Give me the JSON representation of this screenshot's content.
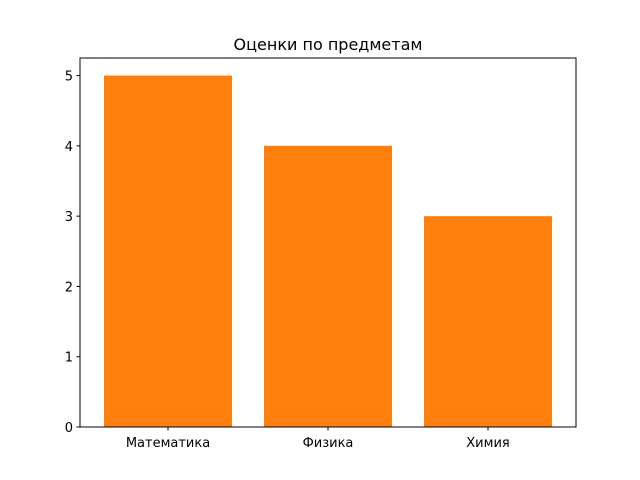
{
  "chart_data": {
    "type": "bar",
    "title": "Оценки по предметам",
    "categories": [
      "Математика",
      "Физика",
      "Химия"
    ],
    "values": [
      5,
      4,
      3
    ],
    "color": "#ff7f0e",
    "ylim": [
      0,
      5.25
    ],
    "yticks": [
      0,
      1,
      2,
      3,
      4,
      5
    ],
    "grid": false
  }
}
